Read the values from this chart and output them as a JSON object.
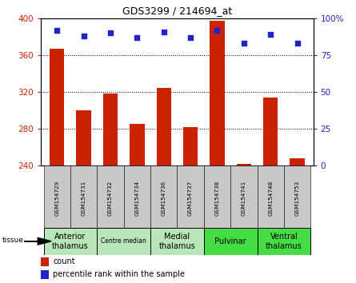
{
  "title": "GDS3299 / 214694_at",
  "samples": [
    "GSM154729",
    "GSM154731",
    "GSM154732",
    "GSM154734",
    "GSM154736",
    "GSM154737",
    "GSM154738",
    "GSM154741",
    "GSM154748",
    "GSM154753"
  ],
  "counts": [
    367,
    300,
    318,
    285,
    324,
    282,
    397,
    242,
    314,
    248
  ],
  "percentile_ranks": [
    92,
    88,
    90,
    87,
    91,
    87,
    92,
    83,
    89,
    83
  ],
  "ylim_left": [
    240,
    400
  ],
  "ylim_right": [
    0,
    100
  ],
  "yticks_left": [
    240,
    280,
    320,
    360,
    400
  ],
  "yticks_right": [
    0,
    25,
    50,
    75,
    100
  ],
  "bar_color": "#cc2200",
  "dot_color": "#2222cc",
  "legend_count_label": "count",
  "legend_pct_label": "percentile rank within the sample",
  "tick_label_color_left": "#cc2200",
  "tick_label_color_right": "#2222cc",
  "group_header_bg": "#c8c8c8",
  "group_positions": [
    {
      "start": 0,
      "end": 1,
      "label": "Anterior\nthalamus",
      "color": "#b8e6b8",
      "fontsize": 7
    },
    {
      "start": 2,
      "end": 3,
      "label": "Centre median",
      "color": "#b8e6b8",
      "fontsize": 5.5
    },
    {
      "start": 4,
      "end": 5,
      "label": "Medial\nthalamus",
      "color": "#b8e6b8",
      "fontsize": 7
    },
    {
      "start": 6,
      "end": 7,
      "label": "Pulvinar",
      "color": "#44dd44",
      "fontsize": 7
    },
    {
      "start": 8,
      "end": 9,
      "label": "Ventral\nthalamus",
      "color": "#44dd44",
      "fontsize": 7
    }
  ]
}
